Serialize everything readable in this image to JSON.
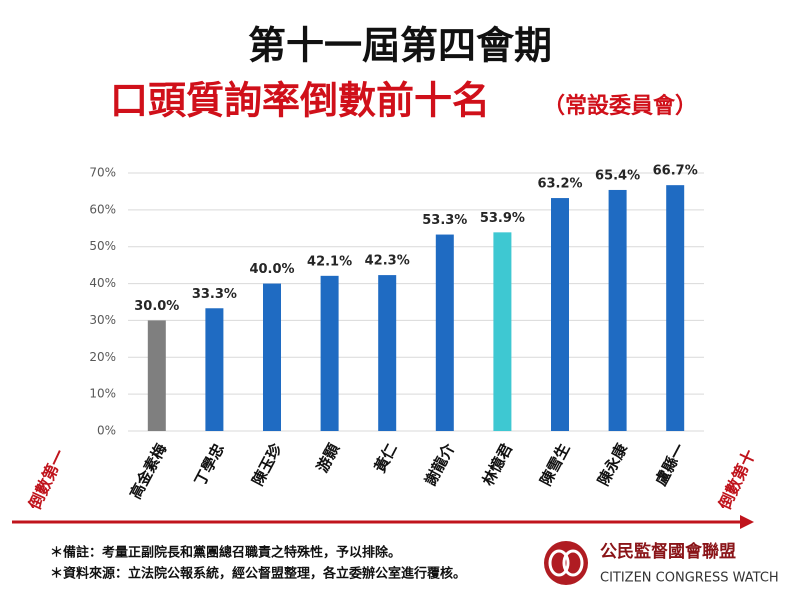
{
  "chart_data": {
    "type": "bar",
    "title": "第十一屆第四會期",
    "subtitle": "口頭質詢率倒數前十名",
    "subtitle_note": "（常設委員會）",
    "categories": [
      "高金素梅",
      "丁學忠",
      "陳玉珍",
      "游顥",
      "黃仁",
      "謝龍介",
      "林憶君",
      "陳雪生",
      "陳永康",
      "盧縣一"
    ],
    "values": [
      30.0,
      33.3,
      40.0,
      42.1,
      42.3,
      53.3,
      53.9,
      63.2,
      65.4,
      66.7
    ],
    "value_labels": [
      "30.0%",
      "33.3%",
      "40.0%",
      "42.1%",
      "42.3%",
      "53.3%",
      "53.9%",
      "63.2%",
      "65.4%",
      "66.7%"
    ],
    "colors": [
      "#7f7f7f",
      "#1f6bc2",
      "#1f6bc2",
      "#1f6bc2",
      "#1f6bc2",
      "#1f6bc2",
      "#3ec8d2",
      "#1f6bc2",
      "#1f6bc2",
      "#1f6bc2"
    ],
    "ylim": [
      0,
      70
    ],
    "yticks": [
      {
        "value": 0,
        "label": "0%"
      },
      {
        "value": 10,
        "label": "10%"
      },
      {
        "value": 20,
        "label": "20%"
      },
      {
        "value": 30,
        "label": "30%"
      },
      {
        "value": 40,
        "label": "40%"
      },
      {
        "value": 50,
        "label": "50%"
      },
      {
        "value": 60,
        "label": "60%"
      },
      {
        "value": 70,
        "label": "70%"
      }
    ],
    "grid": true,
    "annotations": [
      "倒數第一",
      "倒數第十"
    ]
  },
  "notes": [
    "＊備註：考量正副院長和黨團總召職責之特殊性，予以排除。",
    "＊資料來源：立法院公報系統，經公督盟整理，各立委辦公室進行覆核。"
  ],
  "logo": {
    "name": "公民監督國會聯盟",
    "english": "CITIZEN CONGRESS WATCH"
  }
}
